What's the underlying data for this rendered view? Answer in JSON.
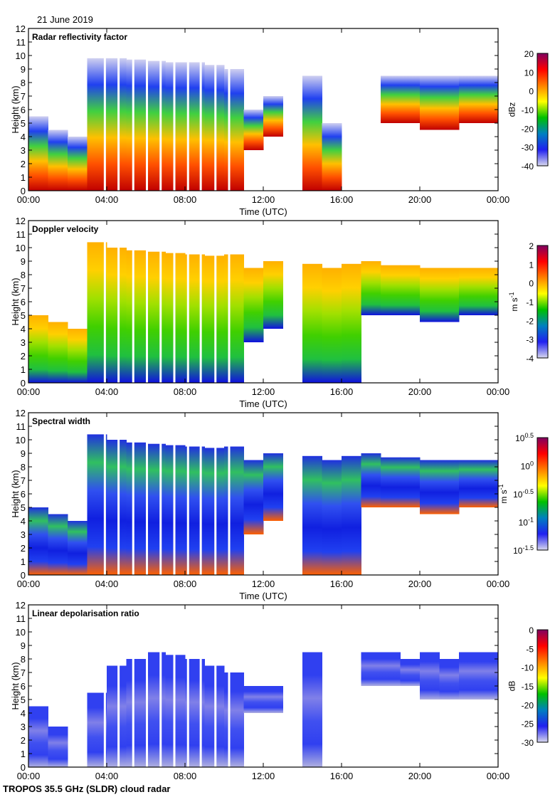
{
  "date": "21 June 2019",
  "footer": "TROPOS 35.5 GHz (SLDR) cloud radar",
  "chart_data": [
    {
      "type": "heatmap",
      "title": "Radar reflectivity factor",
      "xlabel": "Time (UTC)",
      "ylabel": "Height (km)",
      "xticks": [
        "00:00",
        "04:00",
        "08:00",
        "12:00",
        "16:00",
        "20:00",
        "00:00"
      ],
      "ylim": [
        0,
        12
      ],
      "yticks": [
        "0",
        "1",
        "2",
        "3",
        "4",
        "5",
        "6",
        "7",
        "8",
        "9",
        "10",
        "11",
        "12"
      ],
      "colorbar": {
        "unit": "dBz",
        "ticks": [
          "20",
          "10",
          "0",
          "-10",
          "-20",
          "-30",
          "-40"
        ],
        "range": [
          -40,
          20
        ]
      },
      "hourly_cloud_base_km": [
        0,
        0,
        0,
        0,
        0,
        0,
        0,
        0,
        0,
        0,
        0,
        3,
        4,
        0,
        0,
        0,
        0,
        0,
        5,
        5,
        4.5,
        4.5,
        5,
        5
      ],
      "hourly_cloud_top_km": [
        5.5,
        4.5,
        4,
        9.8,
        9.8,
        9.7,
        9.6,
        9.5,
        9.5,
        9.3,
        9,
        6,
        7,
        0,
        8.5,
        5,
        0,
        0,
        8.5,
        8.5,
        8.5,
        8.5,
        8.5,
        8.5
      ]
    },
    {
      "type": "heatmap",
      "title": "Doppler velocity",
      "xlabel": "Time (UTC)",
      "ylabel": "Height (km)",
      "xticks": [
        "00:00",
        "04:00",
        "08:00",
        "12:00",
        "16:00",
        "20:00",
        "00:00"
      ],
      "ylim": [
        0,
        12
      ],
      "yticks": [
        "0",
        "1",
        "2",
        "3",
        "4",
        "5",
        "6",
        "7",
        "8",
        "9",
        "10",
        "11",
        "12"
      ],
      "colorbar": {
        "unit": "m s",
        "unit_sup": "-1",
        "ticks": [
          "2",
          "1",
          "0",
          "-1",
          "-2",
          "-3",
          "-4"
        ],
        "range": [
          -4,
          2
        ]
      },
      "hourly_cloud_base_km": [
        0,
        0,
        0,
        0,
        0,
        0,
        0,
        0,
        0,
        0,
        0,
        3,
        4,
        0,
        0,
        0,
        0,
        5,
        5,
        5,
        4.5,
        4.5,
        5,
        5
      ],
      "hourly_cloud_top_km": [
        5,
        4.5,
        4,
        10.4,
        10,
        9.8,
        9.7,
        9.6,
        9.5,
        9.4,
        9.5,
        8.5,
        9,
        0,
        8.8,
        8.5,
        8.8,
        9,
        8.7,
        8.7,
        8.5,
        8.5,
        8.5,
        8.5
      ]
    },
    {
      "type": "heatmap",
      "title": "Spectral width",
      "xlabel": "Time (UTC)",
      "ylabel": "Height (km)",
      "xticks": [
        "00:00",
        "04:00",
        "08:00",
        "12:00",
        "16:00",
        "20:00",
        "00:00"
      ],
      "ylim": [
        0,
        12
      ],
      "yticks": [
        "0",
        "1",
        "2",
        "3",
        "4",
        "5",
        "6",
        "7",
        "8",
        "9",
        "10",
        "11",
        "12"
      ],
      "colorbar": {
        "unit": "m s",
        "unit_sup": "-1",
        "ticks": [
          {
            "base": "10",
            "exp": "0.5"
          },
          {
            "base": "10",
            "exp": "0"
          },
          {
            "base": "10",
            "exp": "-0.5"
          },
          {
            "base": "10",
            "exp": "-1"
          },
          {
            "base": "10",
            "exp": "-1.5"
          }
        ],
        "range": [
          -1.5,
          0.5
        ]
      },
      "hourly_cloud_base_km": [
        0,
        0,
        0,
        0,
        0,
        0,
        0,
        0,
        0,
        0,
        0,
        3,
        4,
        0,
        0,
        0,
        0,
        5,
        5,
        5,
        4.5,
        4.5,
        5,
        5
      ],
      "hourly_cloud_top_km": [
        5,
        4.5,
        4,
        10.4,
        10,
        9.8,
        9.7,
        9.6,
        9.5,
        9.4,
        9.5,
        8.5,
        9,
        0,
        8.8,
        8.5,
        8.8,
        9,
        8.7,
        8.7,
        8.5,
        8.5,
        8.5,
        8.5
      ]
    },
    {
      "type": "heatmap",
      "title": "Linear depolarisation ratio",
      "xlabel": "Time (UTC)",
      "ylabel": "Height (km)",
      "xticks": [
        "00:00",
        "04:00",
        "08:00",
        "12:00",
        "16:00",
        "20:00",
        "00:00"
      ],
      "ylim": [
        0,
        12
      ],
      "yticks": [
        "0",
        "1",
        "2",
        "3",
        "4",
        "5",
        "6",
        "7",
        "8",
        "9",
        "10",
        "11",
        "12"
      ],
      "colorbar": {
        "unit": "dB",
        "ticks": [
          "0",
          "-5",
          "-10",
          "-15",
          "-20",
          "-25",
          "-30"
        ],
        "range": [
          -30,
          0
        ]
      },
      "hourly_cloud_base_km": [
        0,
        0,
        0,
        0,
        0,
        0,
        0,
        0,
        0,
        0,
        0,
        4,
        4,
        0,
        0,
        0,
        0,
        6,
        6,
        6,
        5,
        5,
        5,
        5
      ],
      "hourly_cloud_top_km": [
        4.5,
        3,
        0,
        5.5,
        7.5,
        8,
        8.5,
        8.3,
        8,
        7.5,
        7,
        6,
        6,
        0,
        8.5,
        0,
        0,
        8.5,
        8.5,
        8,
        8.5,
        8,
        8.5,
        8.5
      ]
    }
  ]
}
